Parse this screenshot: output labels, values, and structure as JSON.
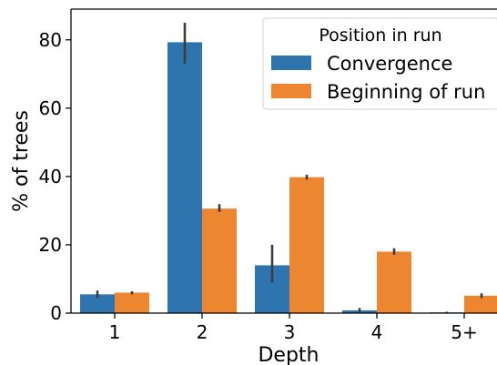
{
  "chart_data": {
    "type": "bar",
    "xlabel": "Depth",
    "ylabel": "% of trees",
    "categories": [
      "1",
      "2",
      "3",
      "4",
      "5+"
    ],
    "ylim": [
      0,
      89
    ],
    "yticks": [
      0,
      20,
      40,
      60,
      80
    ],
    "grid": false,
    "legend": {
      "title": "Position in run",
      "placement": "top-right"
    },
    "series": [
      {
        "name": "Convergence",
        "color": "#2e75b0",
        "values": [
          5.5,
          79.3,
          14.0,
          0.8,
          0.2
        ],
        "error_low": [
          4.4,
          73.0,
          9.0,
          0.2,
          0.0
        ],
        "error_high": [
          6.6,
          85.0,
          20.0,
          1.5,
          0.4
        ]
      },
      {
        "name": "Beginning of run",
        "color": "#ec8631",
        "values": [
          6.0,
          30.6,
          39.8,
          18.0,
          5.1
        ],
        "error_low": [
          5.5,
          29.6,
          39.1,
          17.1,
          4.4
        ],
        "error_high": [
          6.4,
          31.9,
          40.5,
          19.0,
          5.8
        ]
      }
    ],
    "errorbar_color": "#3c3c3c"
  }
}
